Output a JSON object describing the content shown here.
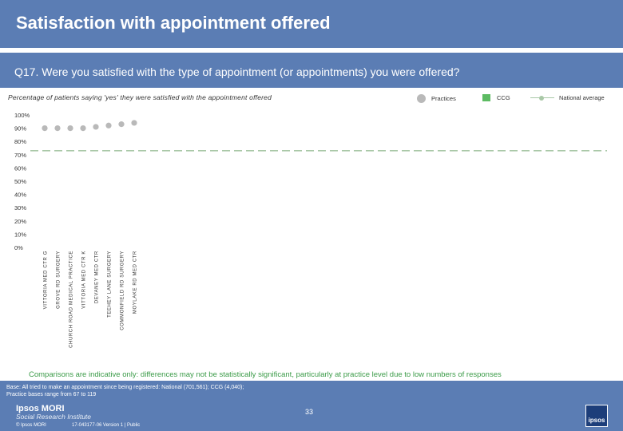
{
  "header": {
    "title": "Satisfaction with appointment offered"
  },
  "question": {
    "text": "Q17. Were you satisfied with the type of appointment (or appointments) you were offered?"
  },
  "subtitle": "Percentage of patients saying 'yes' they were satisfied with the appointment offered",
  "legend": {
    "practices": "Practices",
    "ccg": "CCG",
    "national": "National average"
  },
  "colors": {
    "header_bg": "#5b7db4",
    "practice_dot": "#b9b9b9",
    "ccg": "#5dbb63",
    "national": "#a9c8a7",
    "caveat_text": "#3b9b48"
  },
  "chart_data": {
    "type": "scatter",
    "categories": [
      "VITTORIA MED CTR G",
      "GROVE RD SURGERY",
      "CHURCH ROAD MEDICAL PRACTICE",
      "VITTORIA MED CTR K",
      "DEVANEY MED CTR",
      "TEEHEY LANE SURGERY",
      "COMMONFIELD RD SURGERY",
      "MOYLAKE RD MED CTR"
    ],
    "series": [
      {
        "values": [
          90,
          90,
          90,
          90,
          91,
          92,
          93,
          94
        ]
      }
    ],
    "national_average": 73,
    "ylim": [
      0,
      100
    ],
    "y_ticks": [
      "0%",
      "10%",
      "20%",
      "30%",
      "40%",
      "50%",
      "60%",
      "70%",
      "80%",
      "90%",
      "100%"
    ],
    "grid": false
  },
  "footer": {
    "caveat": "Comparisons are indicative only: differences may not be statistically significant, particularly at practice level due to low numbers of responses",
    "base_line1": "Base: All tried to make an appointment since being registered: National (701,561); CCG (4,040);",
    "base_line2": "Practice bases range from 67 to 119",
    "logo": "Ipsos MORI",
    "logo_sub": "Social Research Institute",
    "page_number": "33",
    "copyright": "© Ipsos MORI",
    "reference": "17-043177-06 Version 1 | Public",
    "icon_label": "ipsos"
  }
}
